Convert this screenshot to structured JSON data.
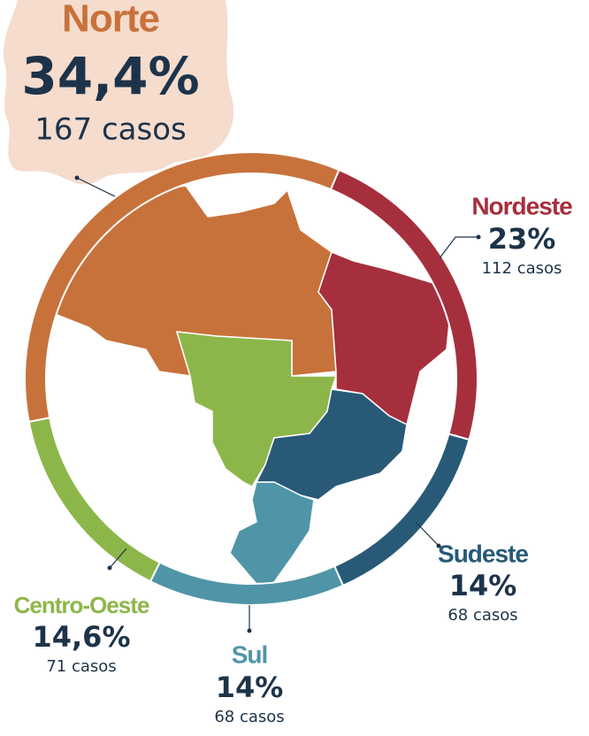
{
  "chart_data": {
    "type": "donut",
    "categories": [
      "Norte",
      "Nordeste",
      "Sudeste",
      "Sul",
      "Centro-Oeste"
    ],
    "values": [
      34.4,
      23,
      14,
      14,
      14.6
    ],
    "value_labels": [
      "34,4%",
      "23%",
      "14%",
      "14%",
      "14,6%"
    ],
    "case_labels": [
      "167 casos",
      "112 casos",
      "68 casos",
      "68 casos",
      "71 casos"
    ],
    "colors": [
      "#c8723b",
      "#a62f3d",
      "#285a78",
      "#4f95a7",
      "#8db64a"
    ]
  }
}
